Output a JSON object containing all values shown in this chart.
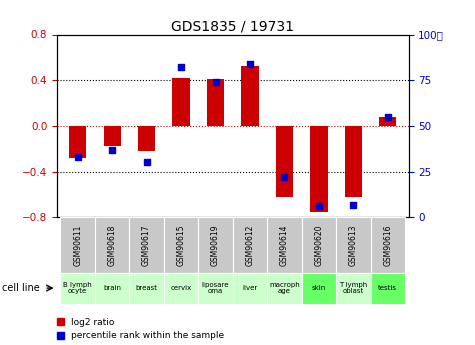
{
  "title": "GDS1835 / 19731",
  "samples": [
    "GSM90611",
    "GSM90618",
    "GSM90617",
    "GSM90615",
    "GSM90619",
    "GSM90612",
    "GSM90614",
    "GSM90620",
    "GSM90613",
    "GSM90616"
  ],
  "cell_lines": [
    "B lymph\nocyte",
    "brain",
    "breast",
    "cervix",
    "liposare\noma",
    "liver",
    "macroph\nage",
    "skin",
    "T lymph\noblast",
    "testis"
  ],
  "cell_line_colors": [
    "#ccffcc",
    "#ccffcc",
    "#ccffcc",
    "#ccffcc",
    "#ccffcc",
    "#ccffcc",
    "#ccffcc",
    "#66ff66",
    "#ccffcc",
    "#66ff66"
  ],
  "log2_ratio": [
    -0.28,
    -0.18,
    -0.22,
    0.42,
    0.41,
    0.52,
    -0.62,
    -0.75,
    -0.62,
    0.08
  ],
  "percentile_rank": [
    33,
    37,
    30,
    82,
    74,
    84,
    22,
    6,
    7,
    55
  ],
  "ylim": [
    -0.8,
    0.8
  ],
  "yticks_left": [
    -0.8,
    -0.4,
    0.0,
    0.4,
    0.8
  ],
  "yticks_right": [
    0,
    25,
    50,
    75,
    100
  ],
  "bar_color": "#cc0000",
  "dot_color": "#0000cc",
  "bar_width": 0.5,
  "dot_size": 20,
  "sample_bg_color": "#c8c8c8",
  "legend_red_label": "log2 ratio",
  "legend_blue_label": "percentile rank within the sample"
}
